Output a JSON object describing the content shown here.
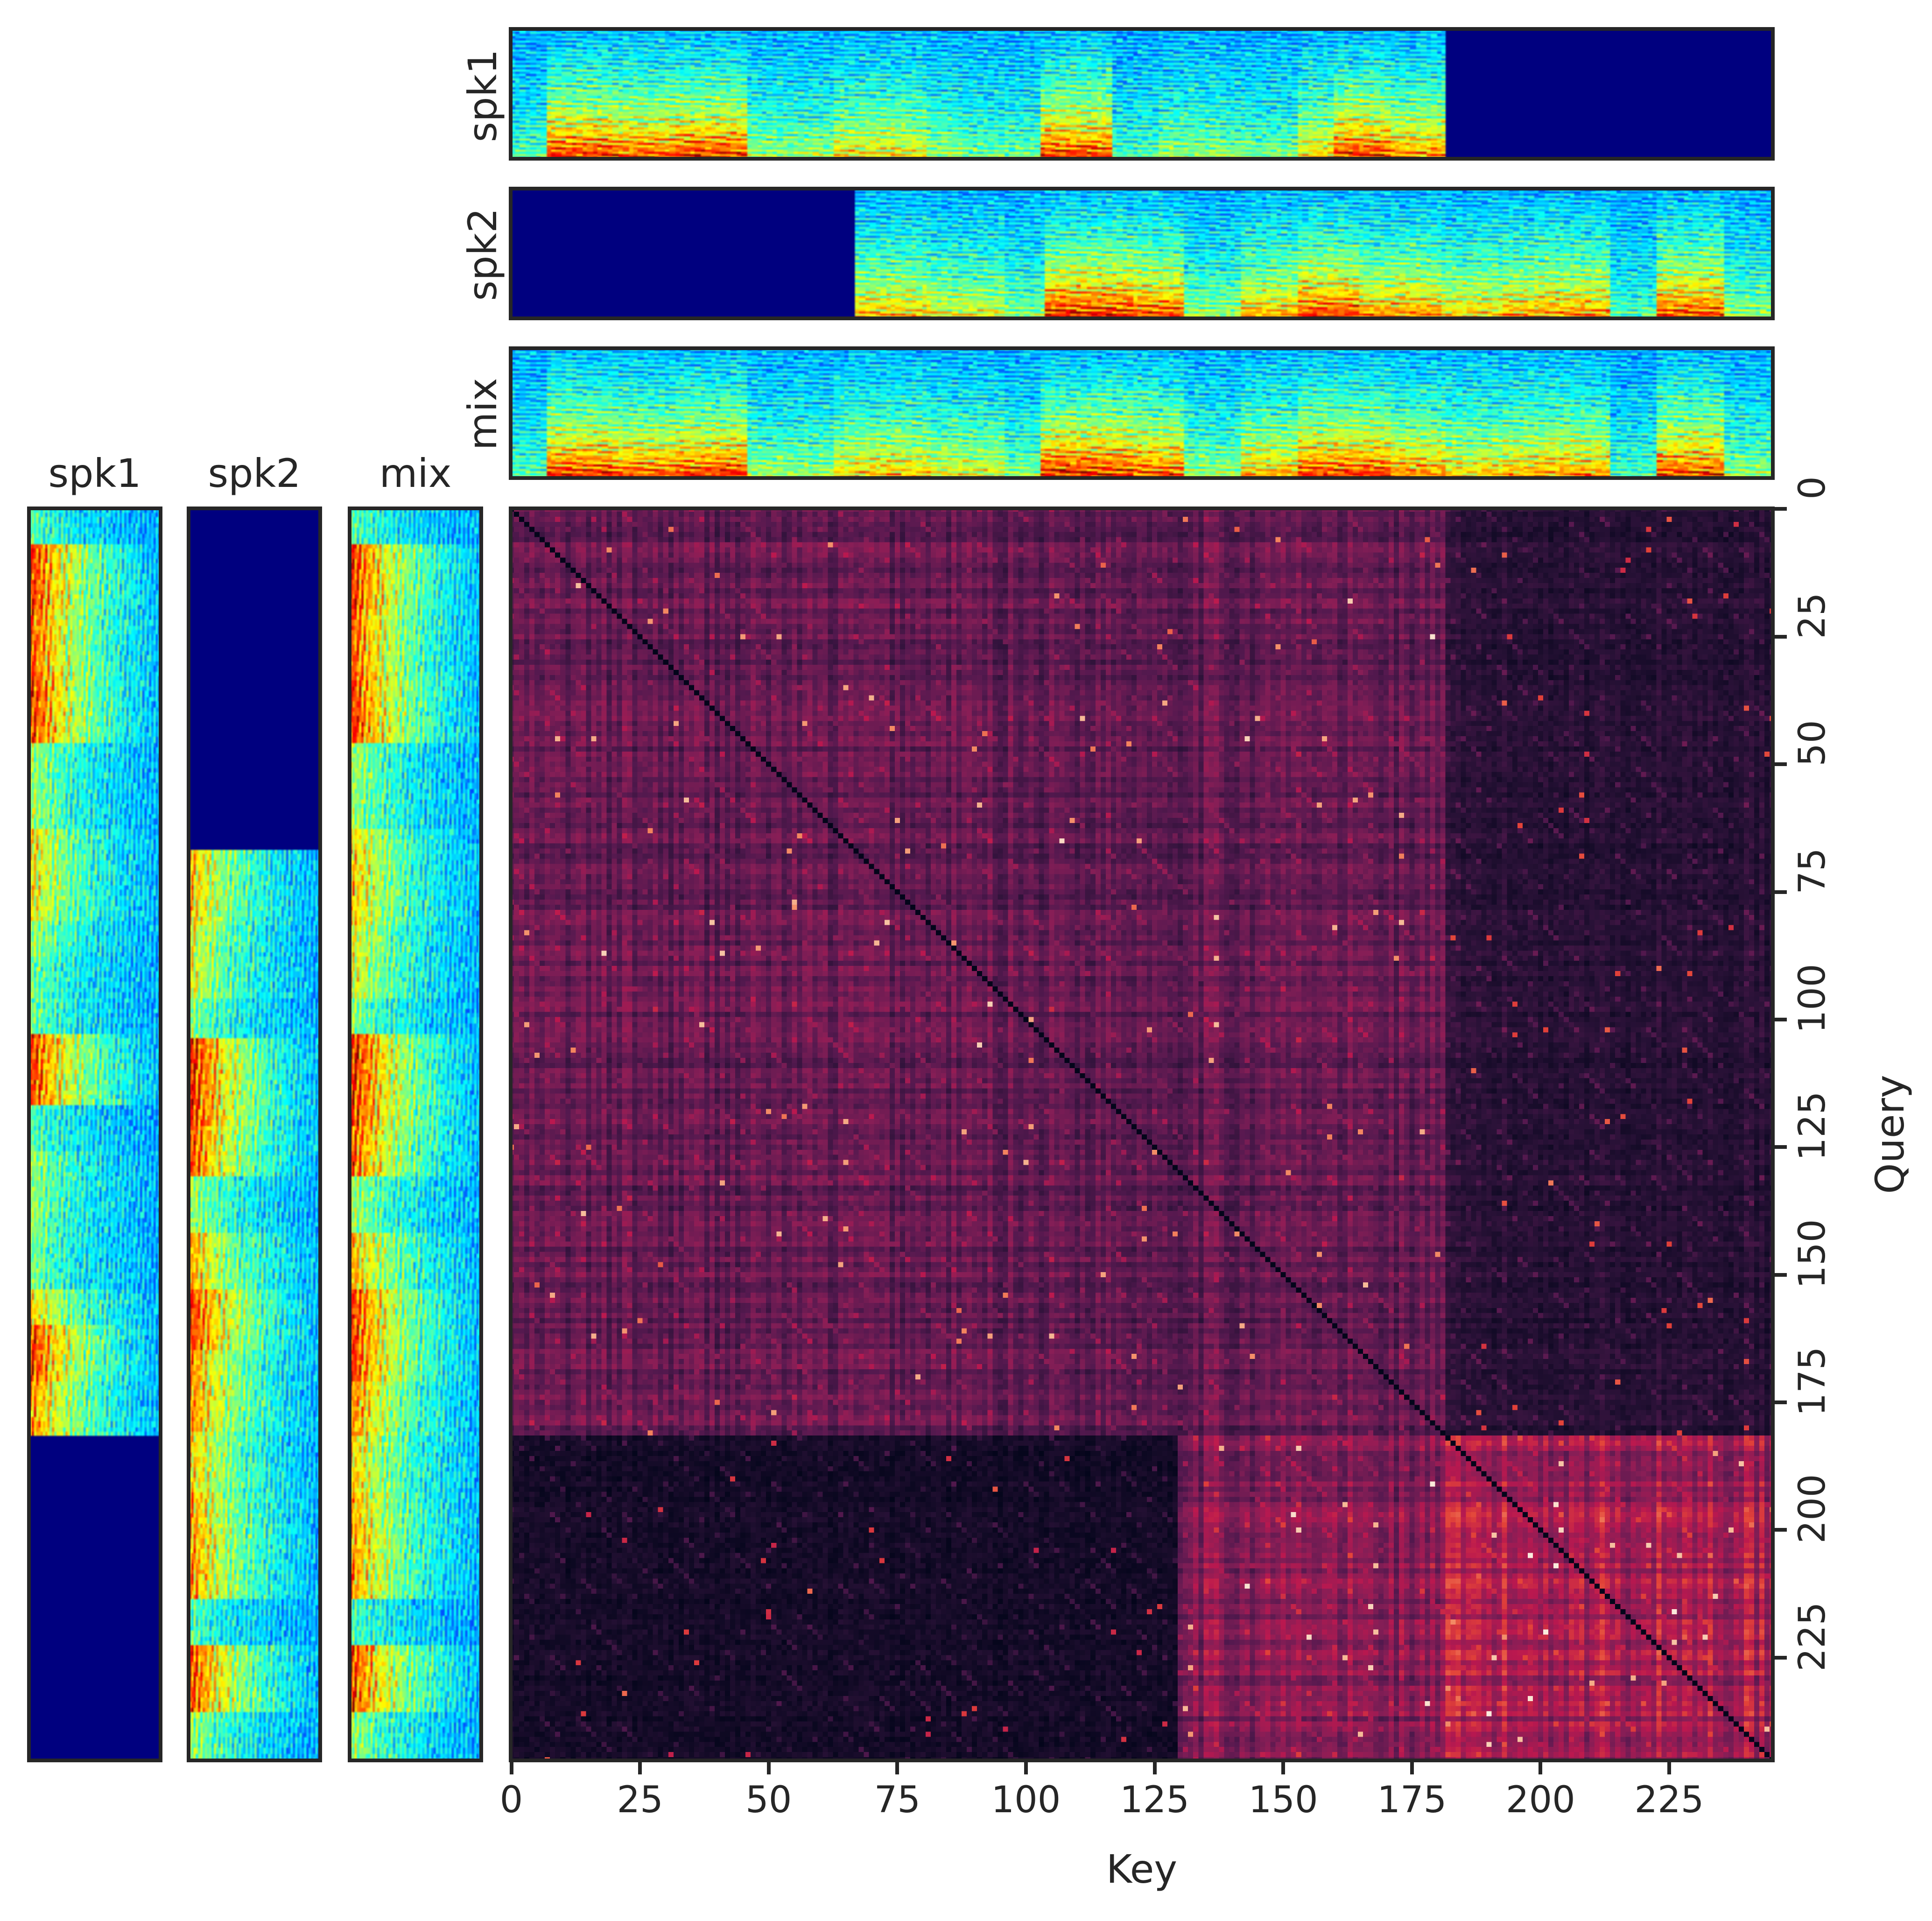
{
  "chart_data": [
    {
      "type": "heatmap",
      "name": "attention-map",
      "xlabel": "Key",
      "ylabel": "Query",
      "x_range": [
        0,
        246
      ],
      "y_range": [
        0,
        246
      ],
      "x_ticks": [
        "0",
        "25",
        "50",
        "75",
        "100",
        "125",
        "150",
        "175",
        "200",
        "225"
      ],
      "y_ticks": [
        "0",
        "25",
        "50",
        "75",
        "100",
        "125",
        "150",
        "175",
        "200",
        "225"
      ],
      "x_tick_values": [
        0,
        25,
        50,
        75,
        100,
        125,
        150,
        175,
        200,
        225
      ],
      "y_tick_values": [
        0,
        25,
        50,
        75,
        100,
        125,
        150,
        175,
        200,
        225
      ],
      "colormap": "rocket",
      "y_axis": "right, inverted",
      "diagonal": "dark line from (0,0) to (246,246)",
      "regions": [
        {
          "keys": [
            0,
            182
          ],
          "queries": [
            0,
            182
          ],
          "level": "medium"
        },
        {
          "keys": [
            182,
            246
          ],
          "queries": [
            182,
            246
          ],
          "level": "high"
        },
        {
          "keys": [
            182,
            246
          ],
          "queries": [
            0,
            182
          ],
          "level": "low"
        },
        {
          "keys": [
            0,
            130
          ],
          "queries": [
            182,
            246
          ],
          "level": "very low"
        },
        {
          "keys": [
            130,
            182
          ],
          "queries": [
            182,
            246
          ],
          "level": "medium-high"
        }
      ]
    },
    {
      "type": "heatmap",
      "name": "spectrograms",
      "colormap": "jet",
      "panels": [
        {
          "label": "spk1",
          "orientation": "horizontal",
          "active_frames": [
            0,
            182
          ]
        },
        {
          "label": "spk2",
          "orientation": "horizontal",
          "active_frames": [
            67,
            246
          ]
        },
        {
          "label": "mix",
          "orientation": "horizontal",
          "active_frames": [
            0,
            246
          ]
        },
        {
          "label": "spk1",
          "orientation": "vertical",
          "active_frames": [
            0,
            182
          ]
        },
        {
          "label": "spk2",
          "orientation": "vertical",
          "active_frames": [
            67,
            246
          ]
        },
        {
          "label": "mix",
          "orientation": "vertical",
          "active_frames": [
            0,
            246
          ]
        }
      ]
    }
  ],
  "labels": {
    "top": [
      "spk1",
      "spk2",
      "mix"
    ],
    "left": [
      "spk1",
      "spk2",
      "mix"
    ]
  },
  "colors": {
    "frame": "#262626",
    "text": "#262626",
    "silence": "#00007f"
  }
}
